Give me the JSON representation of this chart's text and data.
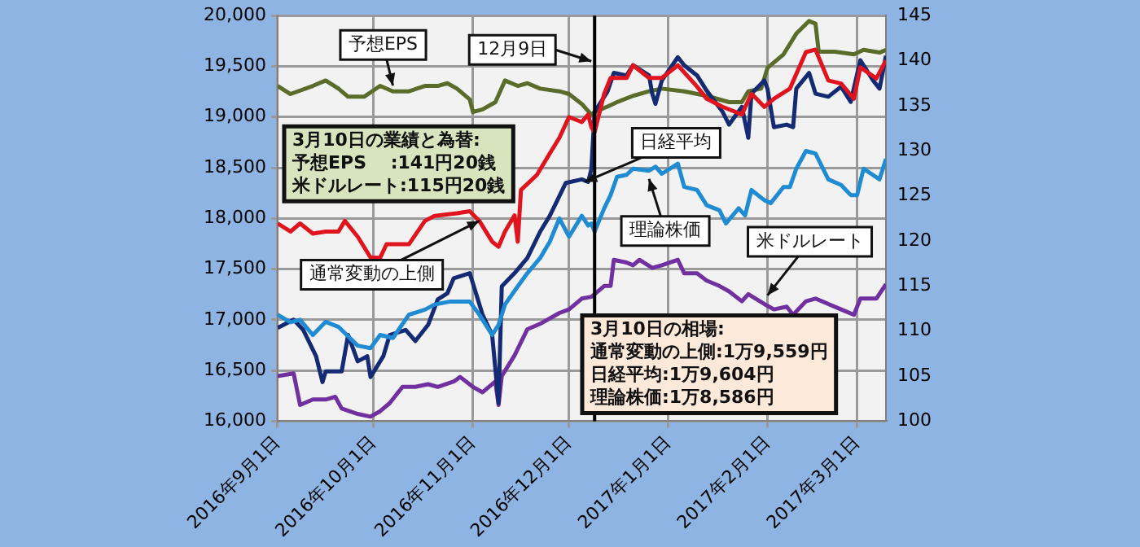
{
  "chart_data": {
    "type": "line",
    "marker": "none",
    "grid": true,
    "legend": false,
    "xlim": [
      "2016-09-01",
      "2017-03-10"
    ],
    "xticks": [
      {
        "value": "2016-09-01",
        "label": "2016年9月1日"
      },
      {
        "value": "2016-10-01",
        "label": "2016年10月1日"
      },
      {
        "value": "2016-11-01",
        "label": "2016年11月1日"
      },
      {
        "value": "2016-12-01",
        "label": "2016年12月1日"
      },
      {
        "value": "2017-01-01",
        "label": "2017年1月1日"
      },
      {
        "value": "2017-02-01",
        "label": "2017年2月1日"
      },
      {
        "value": "2017-03-01",
        "label": "2017年3月1日"
      }
    ],
    "ylim": [
      16000,
      20000
    ],
    "yticks": [
      {
        "value": 16000,
        "label": "16,000"
      },
      {
        "value": 16500,
        "label": "16,500"
      },
      {
        "value": 17000,
        "label": "17,000"
      },
      {
        "value": 17500,
        "label": "17,500"
      },
      {
        "value": 18000,
        "label": "18,000"
      },
      {
        "value": 18500,
        "label": "18,500"
      },
      {
        "value": 19000,
        "label": "19,000"
      },
      {
        "value": 19500,
        "label": "19,500"
      },
      {
        "value": 20000,
        "label": "20,000"
      }
    ],
    "y2lim": [
      100,
      145
    ],
    "y2ticks": [
      100,
      105,
      110,
      115,
      120,
      125,
      130,
      135,
      140,
      145
    ],
    "series": [
      {
        "color": "#1f8bd3",
        "x": [
          "2016-09-01",
          "2016-09-05",
          "2016-09-08",
          "2016-09-12",
          "2016-09-16",
          "2016-09-20",
          "2016-09-26",
          "2016-09-30",
          "2016-10-03",
          "2016-10-07",
          "2016-10-12",
          "2016-10-17",
          "2016-10-20",
          "2016-10-25",
          "2016-10-31",
          "2016-11-03",
          "2016-11-07",
          "2016-11-09",
          "2016-11-11",
          "2016-11-15",
          "2016-11-18",
          "2016-11-22",
          "2016-11-25",
          "2016-11-28",
          "2016-12-01",
          "2016-12-05",
          "2016-12-07",
          "2016-12-08",
          "2016-12-09",
          "2016-12-12",
          "2016-12-14",
          "2016-12-16",
          "2016-12-19",
          "2016-12-21",
          "2016-12-26",
          "2016-12-28",
          "2016-12-30",
          "2017-01-04",
          "2017-01-06",
          "2017-01-10",
          "2017-01-13",
          "2017-01-17",
          "2017-01-19",
          "2017-01-23",
          "2017-01-25",
          "2017-01-27",
          "2017-01-31",
          "2017-02-02",
          "2017-02-06",
          "2017-02-08",
          "2017-02-10",
          "2017-02-13",
          "2017-02-16",
          "2017-02-20",
          "2017-02-24",
          "2017-02-27",
          "2017-03-01",
          "2017-03-03",
          "2017-03-08",
          "2017-03-10"
        ],
        "values": [
          17050,
          16975,
          17000,
          16850,
          16980,
          16930,
          16745,
          16720,
          16850,
          16820,
          17050,
          17100,
          17150,
          17180,
          17180,
          17050,
          16850,
          16950,
          17150,
          17330,
          17460,
          17610,
          17770,
          18000,
          17820,
          18025,
          17930,
          17950,
          17870,
          18100,
          18230,
          18410,
          18430,
          18490,
          18470,
          18510,
          18440,
          18540,
          18310,
          18280,
          18130,
          18080,
          17950,
          18100,
          18030,
          18280,
          18180,
          18150,
          18310,
          18310,
          18490,
          18665,
          18640,
          18385,
          18330,
          18230,
          18230,
          18490,
          18385,
          18586
        ]
      },
      {
        "color": "#e0141e",
        "x": [
          "2016-09-01",
          "2016-09-05",
          "2016-09-08",
          "2016-09-12",
          "2016-09-16",
          "2016-09-20",
          "2016-09-22",
          "2016-09-26",
          "2016-09-30",
          "2016-10-03",
          "2016-10-05",
          "2016-10-12",
          "2016-10-17",
          "2016-10-20",
          "2016-10-27",
          "2016-10-31",
          "2016-11-03",
          "2016-11-07",
          "2016-11-09",
          "2016-11-11",
          "2016-11-14",
          "2016-11-15",
          "2016-11-16",
          "2016-11-21",
          "2016-11-25",
          "2016-11-28",
          "2016-12-01",
          "2016-12-05",
          "2016-12-07",
          "2016-12-08",
          "2016-12-09",
          "2016-12-12",
          "2016-12-14",
          "2016-12-19",
          "2016-12-21",
          "2016-12-26",
          "2016-12-30",
          "2017-01-04",
          "2017-01-10",
          "2017-01-13",
          "2017-01-18",
          "2017-01-24",
          "2017-01-27",
          "2017-01-31",
          "2017-02-03",
          "2017-02-08",
          "2017-02-13",
          "2017-02-16",
          "2017-02-20",
          "2017-02-24",
          "2017-02-28",
          "2017-03-02",
          "2017-03-07",
          "2017-03-10"
        ],
        "values": [
          17950,
          17870,
          17950,
          17850,
          17870,
          17870,
          17975,
          17820,
          17615,
          17610,
          17745,
          17745,
          17975,
          18025,
          18050,
          18070,
          17975,
          17770,
          17720,
          17870,
          18030,
          17770,
          18280,
          18430,
          18640,
          18795,
          19000,
          18950,
          19025,
          18900,
          18850,
          19230,
          19385,
          19385,
          19510,
          19385,
          19385,
          19510,
          19300,
          19180,
          19100,
          19025,
          19230,
          19100,
          19180,
          19280,
          19640,
          19665,
          19360,
          19330,
          19180,
          19490,
          19380,
          19559
        ]
      },
      {
        "color": "#142a72",
        "x": [
          "2016-09-01",
          "2016-09-06",
          "2016-09-09",
          "2016-09-13",
          "2016-09-15",
          "2016-09-16",
          "2016-09-21",
          "2016-09-23",
          "2016-09-26",
          "2016-09-29",
          "2016-09-30",
          "2016-10-04",
          "2016-10-06",
          "2016-10-11",
          "2016-10-14",
          "2016-10-18",
          "2016-10-21",
          "2016-10-24",
          "2016-10-26",
          "2016-10-31",
          "2016-11-04",
          "2016-11-07",
          "2016-11-09",
          "2016-11-10",
          "2016-11-14",
          "2016-11-18",
          "2016-11-22",
          "2016-11-25",
          "2016-11-30",
          "2016-12-05",
          "2016-12-07",
          "2016-12-08",
          "2016-12-09",
          "2016-12-12",
          "2016-12-13",
          "2016-12-15",
          "2016-12-19",
          "2016-12-21",
          "2016-12-26",
          "2016-12-27",
          "2016-12-28",
          "2016-12-30",
          "2017-01-04",
          "2017-01-06",
          "2017-01-10",
          "2017-01-13",
          "2017-01-18",
          "2017-01-20",
          "2017-01-24",
          "2017-01-26",
          "2017-01-27",
          "2017-01-31",
          "2017-02-01",
          "2017-02-03",
          "2017-02-07",
          "2017-02-09",
          "2017-02-10",
          "2017-02-14",
          "2017-02-16",
          "2017-02-20",
          "2017-02-24",
          "2017-02-27",
          "2017-03-02",
          "2017-03-06",
          "2017-03-08",
          "2017-03-10"
        ],
        "values": [
          16920,
          17000,
          16900,
          16640,
          16385,
          16490,
          16490,
          16850,
          16590,
          16640,
          16435,
          16640,
          16850,
          16900,
          16790,
          16950,
          17200,
          17260,
          17410,
          17460,
          17050,
          16850,
          16180,
          17330,
          17460,
          17610,
          17870,
          18025,
          18350,
          18385,
          18360,
          18490,
          19050,
          19200,
          19250,
          19435,
          19410,
          19510,
          19410,
          19230,
          19130,
          19360,
          19590,
          19510,
          19410,
          19260,
          19050,
          18925,
          19100,
          18795,
          19230,
          19360,
          19280,
          18900,
          18925,
          18900,
          19280,
          19435,
          19230,
          19200,
          19300,
          19150,
          19560,
          19360,
          19280,
          19604
        ]
      },
      {
        "color": "#5a6b2a",
        "axis": "y2",
        "x": [
          "2016-09-01",
          "2016-09-05",
          "2016-09-12",
          "2016-09-16",
          "2016-09-20",
          "2016-09-23",
          "2016-09-28",
          "2016-10-03",
          "2016-10-07",
          "2016-10-12",
          "2016-10-17",
          "2016-10-21",
          "2016-10-24",
          "2016-10-27",
          "2016-10-31",
          "2016-11-01",
          "2016-11-04",
          "2016-11-08",
          "2016-11-11",
          "2016-11-15",
          "2016-11-18",
          "2016-11-22",
          "2016-11-28",
          "2016-12-01",
          "2016-12-05",
          "2016-12-08",
          "2016-12-09",
          "2016-12-13",
          "2016-12-16",
          "2016-12-21",
          "2016-12-26",
          "2016-12-30",
          "2017-01-06",
          "2017-01-13",
          "2017-01-20",
          "2017-01-24",
          "2017-01-26",
          "2017-01-30",
          "2017-02-01",
          "2017-02-06",
          "2017-02-10",
          "2017-02-14",
          "2017-02-16",
          "2017-02-17",
          "2017-02-22",
          "2017-02-28",
          "2017-03-03",
          "2017-03-08",
          "2017-03-10"
        ],
        "values": [
          137.2,
          136.3,
          137.2,
          137.8,
          136.9,
          136,
          136,
          137.2,
          136.6,
          136.6,
          137.2,
          137.2,
          137.5,
          136.9,
          135.7,
          134.3,
          134.6,
          135.4,
          137.8,
          137.2,
          137.5,
          136.9,
          136.6,
          136.3,
          135.2,
          134,
          134.3,
          134.9,
          135.4,
          136.1,
          136.6,
          136.9,
          136.6,
          136.1,
          135.4,
          135.4,
          136.6,
          136.9,
          139.2,
          140.7,
          143,
          144.4,
          144.1,
          141,
          141,
          140.7,
          141.2,
          140.9,
          141.2
        ]
      },
      {
        "color": "#7030a0",
        "axis": "y2",
        "x": [
          "2016-09-01",
          "2016-09-06",
          "2016-09-08",
          "2016-09-12",
          "2016-09-16",
          "2016-09-19",
          "2016-09-21",
          "2016-09-26",
          "2016-09-30",
          "2016-10-03",
          "2016-10-06",
          "2016-10-10",
          "2016-10-14",
          "2016-10-18",
          "2016-10-21",
          "2016-10-26",
          "2016-10-28",
          "2016-11-01",
          "2016-11-04",
          "2016-11-08",
          "2016-11-09",
          "2016-11-10",
          "2016-11-14",
          "2016-11-18",
          "2016-11-22",
          "2016-11-28",
          "2016-12-01",
          "2016-12-05",
          "2016-12-08",
          "2016-12-09",
          "2016-12-12",
          "2016-12-14",
          "2016-12-15",
          "2016-12-19",
          "2016-12-21",
          "2016-12-23",
          "2016-12-27",
          "2016-12-30",
          "2017-01-04",
          "2017-01-06",
          "2017-01-10",
          "2017-01-13",
          "2017-01-17",
          "2017-01-20",
          "2017-01-24",
          "2017-01-26",
          "2017-01-31",
          "2017-02-03",
          "2017-02-07",
          "2017-02-09",
          "2017-02-13",
          "2017-02-16",
          "2017-02-20",
          "2017-02-24",
          "2017-02-28",
          "2017-03-02",
          "2017-03-07",
          "2017-03-10"
        ],
        "values": [
          105,
          105.3,
          101.8,
          102.4,
          102.4,
          102.7,
          101.4,
          100.8,
          100.5,
          101.1,
          102,
          103.8,
          103.8,
          104.1,
          103.8,
          104.4,
          104.9,
          103.8,
          103.2,
          104.4,
          101.8,
          105,
          107.3,
          110.2,
          110.8,
          112,
          112.4,
          113.6,
          113.8,
          114.1,
          115,
          115,
          117.9,
          117.6,
          117.3,
          117.9,
          117,
          117.3,
          117.9,
          116.4,
          116.4,
          115.6,
          115,
          114.4,
          113.3,
          114.1,
          113,
          112.4,
          112.7,
          111.8,
          113.3,
          113.6,
          113,
          112.4,
          111.8,
          113.6,
          113.6,
          115.2
        ]
      }
    ],
    "ref_lines": [
      {
        "axis": "x",
        "value": "2016-12-09",
        "label": "12月9日"
      }
    ],
    "annotations": [
      {
        "text": "予想EPS",
        "x": "2016-10-07",
        "y": 19310
      },
      {
        "text": "通常変動の上側",
        "x": "2016-11-03",
        "y": 17975
      },
      {
        "text": "日経平均",
        "x": "2016-12-06",
        "y": 18360
      },
      {
        "text": "理論株価",
        "x": "2016-12-26",
        "y": 18390
      },
      {
        "text": "米ドルレート",
        "x": "2017-02-01",
        "y": 17240
      },
      "3月10日の業績と為替:",
      "予想EPS　 :141円20銭",
      "米ドルレート:115円20銭",
      "3月10日の相場:",
      "通常変動の上側:1万9,559円",
      "日経平均:1万9,604円",
      "理論株価:1万8,586円"
    ]
  }
}
